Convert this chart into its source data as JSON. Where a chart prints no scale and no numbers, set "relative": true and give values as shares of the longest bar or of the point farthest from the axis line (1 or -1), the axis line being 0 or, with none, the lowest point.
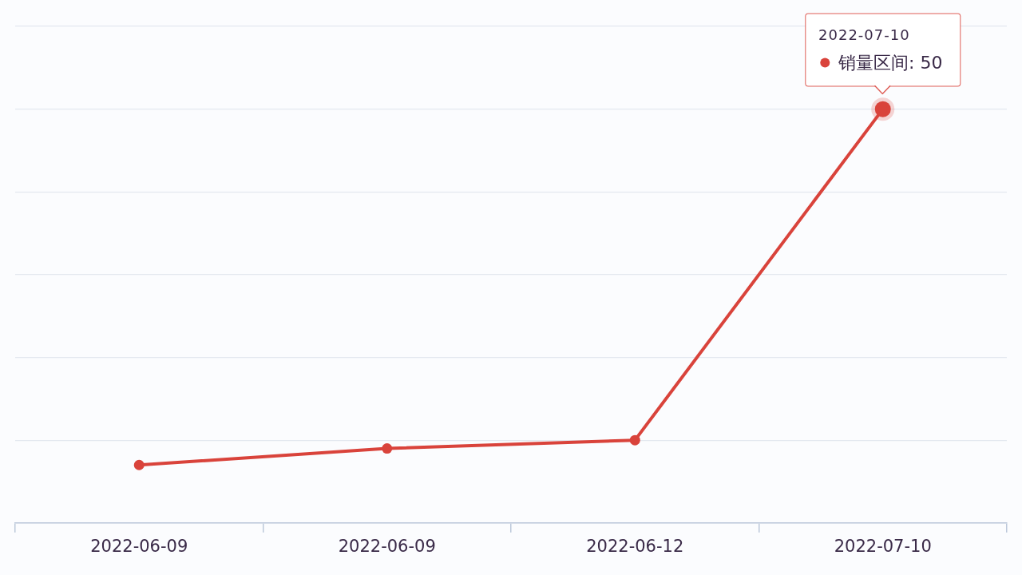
{
  "chart_data": {
    "type": "line",
    "relative": true,
    "categories": [
      "2022-06-09",
      "2022-06-09",
      "2022-06-12",
      "2022-07-10"
    ],
    "series": [
      {
        "color": "#d9433b",
        "values": [
          0.14,
          0.18,
          0.2,
          1
        ]
      }
    ],
    "annotations": [
      {
        "text": "销量区间: 50",
        "x": "2022-07-10",
        "y": 1
      }
    ],
    "grid": "y",
    "tick_labels": "x",
    "marker": "circle"
  }
}
